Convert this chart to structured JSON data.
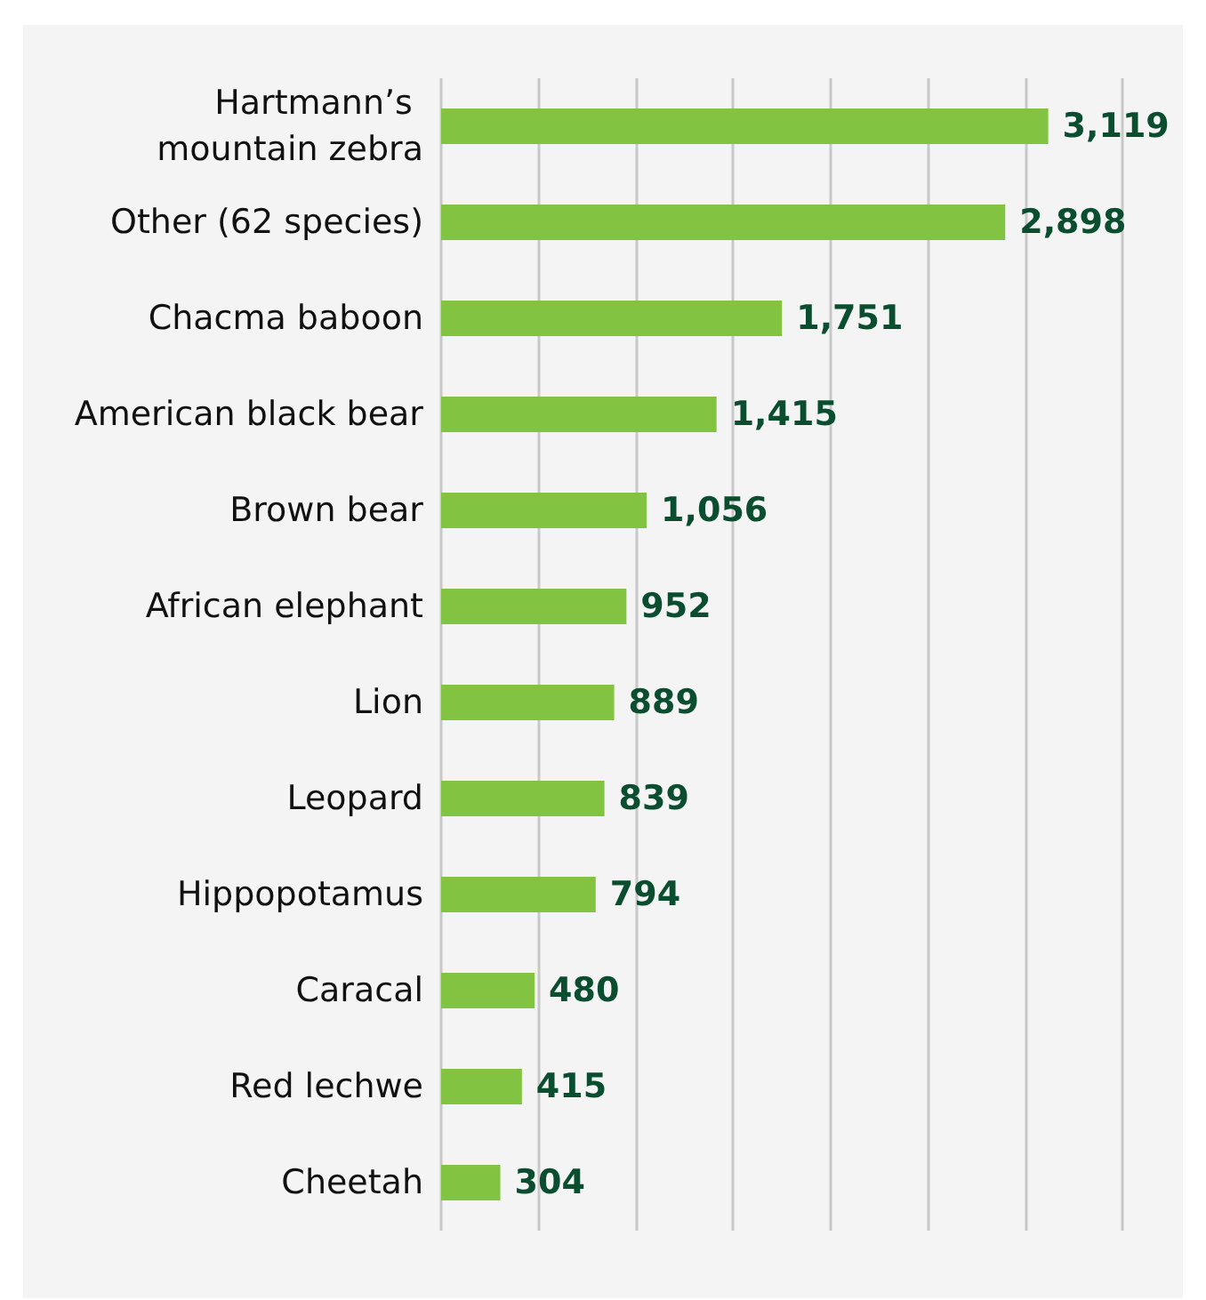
{
  "chart_data": {
    "type": "bar",
    "orientation": "horizontal",
    "categories": [
      "Hartmann’s mountain zebra",
      "Other (62 species)",
      "Chacma baboon",
      "American black bear",
      "Brown bear",
      "African elephant",
      "Lion",
      "Leopard",
      "Hippopotamus",
      "Caracal",
      "Red lechwe",
      "Cheetah"
    ],
    "values": [
      3119,
      2898,
      1751,
      1415,
      1056,
      952,
      889,
      839,
      794,
      480,
      415,
      304
    ],
    "value_labels": [
      "3,119",
      "2,898",
      "1,751",
      "1,415",
      "1,056",
      "952",
      "889",
      "839",
      "794",
      "480",
      "415",
      "304"
    ],
    "color": "#82c341",
    "xlim": [
      0,
      3500
    ],
    "xticks": [
      {
        "value": 0,
        "label": null
      },
      {
        "value": 500,
        "label": null
      },
      {
        "value": 1000,
        "label": null
      },
      {
        "value": 1500,
        "label": null
      },
      {
        "value": 2000,
        "label": null
      },
      {
        "value": 2500,
        "label": null
      },
      {
        "value": 3000,
        "label": null
      },
      {
        "value": 3500,
        "label": null
      }
    ],
    "grid": "x",
    "tick_labels": "y"
  }
}
